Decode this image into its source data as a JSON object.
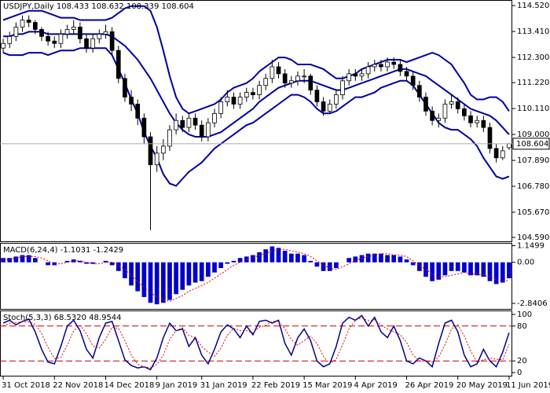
{
  "chart_data": [
    {
      "type": "candlestick",
      "title": "USDJPY,Daily 108.433 108.632 108.339 108.604",
      "open": [
        112.7,
        112.9,
        113.2,
        113.6,
        113.9,
        113.8,
        113.5,
        113.2,
        113.0,
        112.9,
        113.3,
        113.5,
        113.6,
        113.1,
        112.7,
        113.1,
        113.3,
        113.4,
        112.6,
        111.4,
        110.6,
        110.3,
        109.7,
        108.9,
        107.7,
        108.2,
        108.5,
        109.2,
        109.6,
        109.3,
        109.7,
        109.4,
        108.9,
        109.5,
        109.9,
        110.4,
        110.6,
        110.3,
        110.6,
        110.8,
        110.7,
        111.1,
        111.4,
        111.9,
        111.6,
        111.2,
        111.3,
        111.5,
        111.5,
        110.9,
        110.4,
        110.0,
        110.3,
        110.7,
        111.3,
        111.6,
        111.5,
        111.6,
        111.9,
        112.0,
        111.9,
        112.1,
        112.0,
        111.7,
        111.5,
        111.1,
        110.6,
        110.0,
        109.6,
        109.7,
        110.3,
        110.4,
        110.1,
        109.8,
        109.5,
        109.6,
        109.3,
        108.4,
        108.0,
        108.433
      ],
      "high": [
        113.1,
        113.4,
        113.8,
        114.1,
        114.1,
        113.9,
        113.6,
        113.4,
        113.2,
        113.5,
        113.7,
        113.9,
        113.8,
        113.3,
        113.3,
        113.5,
        113.7,
        113.6,
        112.8,
        111.6,
        110.9,
        110.5,
        109.9,
        109.1,
        108.5,
        108.8,
        109.4,
        109.9,
        109.8,
        109.9,
        109.9,
        109.6,
        109.7,
        110.1,
        110.6,
        110.9,
        110.8,
        110.8,
        111.0,
        111.0,
        111.3,
        111.6,
        112.2,
        112.1,
        111.8,
        111.5,
        111.7,
        111.8,
        111.6,
        111.1,
        110.6,
        110.5,
        110.9,
        111.5,
        111.8,
        111.8,
        111.8,
        112.1,
        112.2,
        112.2,
        112.3,
        112.3,
        112.2,
        111.9,
        111.7,
        111.3,
        110.8,
        110.2,
        109.9,
        110.5,
        110.7,
        110.6,
        110.3,
        110.0,
        109.8,
        109.8,
        109.5,
        108.6,
        108.5,
        108.632
      ],
      "low": [
        112.5,
        112.7,
        113.0,
        113.4,
        113.6,
        113.3,
        113.0,
        112.8,
        112.7,
        112.7,
        113.1,
        113.3,
        112.9,
        112.5,
        112.5,
        112.9,
        113.1,
        112.4,
        111.2,
        110.4,
        110.0,
        109.4,
        108.6,
        104.9,
        107.4,
        107.9,
        108.3,
        109.0,
        109.1,
        109.1,
        109.2,
        108.7,
        108.7,
        109.3,
        109.7,
        110.2,
        110.1,
        110.1,
        110.4,
        110.5,
        110.5,
        110.9,
        111.2,
        111.4,
        111.0,
        111.0,
        111.1,
        111.2,
        110.7,
        110.2,
        109.8,
        109.9,
        110.1,
        110.5,
        111.1,
        111.3,
        111.3,
        111.4,
        111.7,
        111.7,
        111.7,
        111.8,
        111.5,
        111.3,
        110.9,
        110.4,
        109.8,
        109.4,
        109.3,
        109.5,
        110.1,
        109.9,
        109.6,
        109.3,
        109.3,
        109.1,
        108.2,
        107.8,
        107.9,
        108.339
      ],
      "close": [
        112.9,
        113.2,
        113.6,
        113.9,
        113.8,
        113.5,
        113.2,
        113.0,
        112.9,
        113.3,
        113.5,
        113.6,
        113.1,
        112.7,
        113.1,
        113.3,
        113.4,
        112.6,
        111.4,
        110.6,
        110.3,
        109.7,
        108.9,
        107.7,
        108.2,
        108.5,
        109.2,
        109.6,
        109.3,
        109.7,
        109.4,
        108.9,
        109.5,
        109.9,
        110.4,
        110.6,
        110.3,
        110.6,
        110.8,
        110.7,
        111.1,
        111.4,
        111.9,
        111.6,
        111.2,
        111.3,
        111.5,
        111.5,
        110.9,
        110.4,
        110.0,
        110.3,
        110.7,
        111.3,
        111.6,
        111.5,
        111.6,
        111.9,
        112.0,
        111.9,
        112.1,
        112.0,
        111.7,
        111.5,
        111.1,
        110.6,
        110.0,
        109.6,
        109.7,
        110.3,
        110.4,
        110.1,
        109.8,
        109.5,
        109.6,
        109.3,
        108.4,
        108.0,
        108.3,
        108.604
      ],
      "series": [
        {
          "color": "#0000a0",
          "values": [
            113.9,
            114.0,
            114.1,
            114.2,
            114.3,
            114.3,
            114.3,
            114.2,
            114.1,
            114.0,
            114.0,
            114.0,
            113.9,
            113.9,
            113.9,
            113.9,
            113.9,
            114.0,
            114.2,
            114.4,
            114.5,
            114.5,
            114.5,
            114.3,
            113.6,
            112.6,
            111.5,
            110.6,
            110.1,
            109.9,
            110.0,
            110.1,
            110.2,
            110.3,
            110.5,
            110.8,
            111.0,
            111.1,
            111.2,
            111.4,
            111.7,
            111.9,
            112.1,
            112.3,
            112.3,
            112.2,
            112.0,
            112.0,
            112.0,
            111.9,
            111.8,
            111.6,
            111.4,
            111.4,
            111.5,
            111.6,
            111.8,
            111.9,
            112.0,
            112.1,
            112.2,
            112.2,
            112.2,
            112.1,
            112.2,
            112.3,
            112.4,
            112.5,
            112.4,
            112.2,
            112.0,
            111.6,
            111.2,
            110.7,
            110.5,
            110.5,
            110.6,
            110.6,
            110.4,
            110.0
          ]
        },
        {
          "color": "#0000a0",
          "values": [
            113.2,
            113.2,
            113.3,
            113.3,
            113.4,
            113.4,
            113.4,
            113.3,
            113.3,
            113.3,
            113.3,
            113.3,
            113.3,
            113.3,
            113.3,
            113.3,
            113.3,
            113.2,
            113.0,
            112.8,
            112.5,
            112.2,
            111.8,
            111.4,
            110.9,
            110.4,
            109.9,
            109.5,
            109.2,
            109.0,
            108.9,
            108.9,
            108.9,
            109.0,
            109.1,
            109.3,
            109.5,
            109.7,
            109.9,
            110.1,
            110.4,
            110.6,
            110.8,
            111.0,
            111.1,
            111.2,
            111.3,
            111.3,
            111.3,
            111.2,
            111.1,
            111.0,
            110.9,
            110.9,
            111.0,
            111.1,
            111.2,
            111.3,
            111.4,
            111.5,
            111.6,
            111.7,
            111.8,
            111.8,
            111.7,
            111.6,
            111.5,
            111.3,
            111.1,
            110.9,
            110.7,
            110.5,
            110.3,
            110.1,
            110.0,
            109.9,
            109.8,
            109.6,
            109.3,
            109.0
          ]
        },
        {
          "color": "#0000a0",
          "values": [
            112.5,
            112.4,
            112.4,
            112.4,
            112.5,
            112.5,
            112.5,
            112.4,
            112.5,
            112.6,
            112.6,
            112.6,
            112.7,
            112.7,
            112.7,
            112.7,
            112.7,
            112.4,
            111.8,
            111.2,
            110.5,
            109.9,
            109.1,
            108.5,
            108.0,
            107.3,
            106.9,
            106.8,
            107.1,
            107.4,
            107.6,
            107.8,
            108.1,
            108.4,
            108.6,
            108.8,
            109.0,
            109.2,
            109.4,
            109.5,
            109.7,
            109.9,
            110.1,
            110.3,
            110.5,
            110.7,
            110.7,
            110.6,
            110.4,
            110.1,
            109.9,
            109.9,
            110.0,
            110.2,
            110.4,
            110.6,
            110.6,
            110.7,
            110.8,
            111.0,
            111.1,
            111.2,
            111.3,
            111.3,
            111.1,
            110.7,
            110.3,
            109.9,
            109.5,
            109.3,
            109.2,
            109.2,
            109.0,
            108.8,
            108.5,
            108.0,
            107.6,
            107.2,
            107.1,
            107.2
          ]
        }
      ],
      "ylim": [
        104.39,
        114.76
      ],
      "yticks": [
        {
          "value": 114.52,
          "label": "114.520"
        },
        {
          "value": 113.41,
          "label": "113.410"
        },
        {
          "value": 112.3,
          "label": "112.300"
        },
        {
          "value": 111.22,
          "label": "111.220"
        },
        {
          "value": 110.11,
          "label": "110.110"
        },
        {
          "value": 109.0,
          "label": "109.000"
        },
        {
          "value": 107.89,
          "label": "107.890"
        },
        {
          "value": 106.78,
          "label": "106.780"
        },
        {
          "value": 105.67,
          "label": "105.670"
        },
        {
          "value": 104.59,
          "label": "104.590"
        }
      ]
    },
    {
      "type": "bar",
      "title": "MACD(6,24,4) -1.1031 -1.2429",
      "series": [
        {
          "type": "bar",
          "color": "#0000cc",
          "values": [
            0.3,
            0.3,
            0.4,
            0.5,
            0.5,
            0.3,
            0.0,
            -0.2,
            -0.2,
            0.0,
            0.1,
            0.2,
            0.1,
            -0.1,
            -0.1,
            0.0,
            0.1,
            -0.2,
            -0.6,
            -1.1,
            -1.6,
            -2.0,
            -2.4,
            -2.8,
            -2.9,
            -2.8,
            -2.6,
            -2.2,
            -1.9,
            -1.6,
            -1.4,
            -1.3,
            -1.0,
            -0.7,
            -0.4,
            -0.1,
            0.1,
            0.3,
            0.4,
            0.5,
            0.7,
            0.9,
            1.1,
            1.0,
            0.8,
            0.6,
            0.6,
            0.5,
            0.1,
            -0.3,
            -0.6,
            -0.6,
            -0.4,
            0.0,
            0.3,
            0.4,
            0.5,
            0.6,
            0.6,
            0.6,
            0.5,
            0.5,
            0.4,
            0.2,
            -0.2,
            -0.6,
            -1.0,
            -1.3,
            -1.2,
            -0.9,
            -0.6,
            -0.6,
            -0.7,
            -0.9,
            -0.9,
            -1.0,
            -1.3,
            -1.5,
            -1.4,
            -1.1031
          ]
        },
        {
          "type": "line",
          "color": "#e00000",
          "values": [
            0.2,
            0.2,
            0.3,
            0.4,
            0.4,
            0.4,
            0.3,
            0.1,
            -0.1,
            -0.1,
            0.0,
            0.1,
            0.1,
            0.0,
            -0.1,
            -0.1,
            0.0,
            0.0,
            -0.2,
            -0.5,
            -0.9,
            -1.3,
            -1.7,
            -2.1,
            -2.4,
            -2.6,
            -2.7,
            -2.5,
            -2.3,
            -2.0,
            -1.8,
            -1.6,
            -1.4,
            -1.1,
            -0.8,
            -0.5,
            -0.2,
            0.0,
            0.2,
            0.3,
            0.5,
            0.6,
            0.8,
            0.9,
            0.9,
            0.8,
            0.7,
            0.6,
            0.4,
            0.1,
            -0.2,
            -0.4,
            -0.5,
            -0.3,
            -0.1,
            0.1,
            0.3,
            0.4,
            0.5,
            0.6,
            0.6,
            0.5,
            0.5,
            0.4,
            0.1,
            -0.2,
            -0.5,
            -0.8,
            -1.0,
            -1.0,
            -0.9,
            -0.8,
            -0.7,
            -0.8,
            -0.8,
            -0.9,
            -1.0,
            -1.2,
            -1.3,
            -1.2429
          ]
        }
      ],
      "ylim": [
        -3.22,
        1.29
      ],
      "yticks": [
        1.1499,
        {
          "value": 0,
          "label": "0.00"
        },
        -2.8406
      ]
    },
    {
      "type": "line",
      "title": "Stoch(5,3,3) 68.5320 48.9544",
      "categories": [
        "31 Oct 2018",
        null,
        null,
        null,
        null,
        null,
        null,
        null,
        "22 Nov 2018",
        null,
        null,
        null,
        null,
        null,
        null,
        null,
        "14 Dec 2018",
        null,
        null,
        null,
        null,
        null,
        null,
        null,
        "9 Jan 2019",
        null,
        null,
        null,
        null,
        null,
        null,
        "31 Jan 2019",
        null,
        null,
        null,
        null,
        null,
        null,
        null,
        "22 Feb 2019",
        null,
        null,
        null,
        null,
        null,
        null,
        null,
        "15 Mar 2019",
        null,
        null,
        null,
        null,
        null,
        null,
        null,
        "4 Apr 2019",
        null,
        null,
        null,
        null,
        null,
        null,
        null,
        "26 Apr 2019",
        null,
        null,
        null,
        null,
        null,
        null,
        null,
        "20 May 2019",
        null,
        null,
        null,
        null,
        null,
        null,
        null,
        "11 Jun 2019"
      ],
      "series": [
        {
          "color": "#00008b",
          "values": [
            85,
            90,
            82,
            88,
            92,
            70,
            40,
            18,
            15,
            45,
            80,
            90,
            72,
            40,
            25,
            60,
            85,
            88,
            55,
            22,
            12,
            8,
            10,
            5,
            25,
            60,
            85,
            72,
            75,
            45,
            60,
            30,
            15,
            40,
            70,
            82,
            75,
            60,
            80,
            65,
            88,
            90,
            85,
            90,
            50,
            30,
            60,
            75,
            55,
            20,
            10,
            15,
            45,
            85,
            95,
            90,
            98,
            80,
            95,
            70,
            60,
            80,
            55,
            20,
            15,
            25,
            20,
            10,
            50,
            85,
            90,
            70,
            30,
            10,
            15,
            40,
            20,
            10,
            35,
            68.532
          ]
        },
        {
          "color": "#e00000",
          "dashed": true,
          "values": [
            80,
            85,
            86,
            87,
            87,
            83,
            67,
            43,
            24,
            26,
            47,
            72,
            81,
            67,
            46,
            42,
            57,
            78,
            76,
            55,
            30,
            14,
            10,
            8,
            14,
            30,
            57,
            72,
            77,
            64,
            60,
            45,
            35,
            28,
            42,
            64,
            76,
            72,
            72,
            68,
            78,
            81,
            88,
            88,
            75,
            57,
            47,
            55,
            63,
            50,
            28,
            15,
            23,
            48,
            75,
            90,
            94,
            89,
            91,
            82,
            75,
            70,
            65,
            52,
            30,
            20,
            20,
            18,
            27,
            48,
            75,
            82,
            63,
            37,
            18,
            22,
            25,
            23,
            22,
            48.9544
          ]
        }
      ],
      "levels": [
        80,
        20
      ],
      "level_color": "#c00000",
      "ylim": [
        -5.4,
        105.4
      ],
      "yticks": [
        100,
        80,
        20,
        0
      ]
    }
  ]
}
